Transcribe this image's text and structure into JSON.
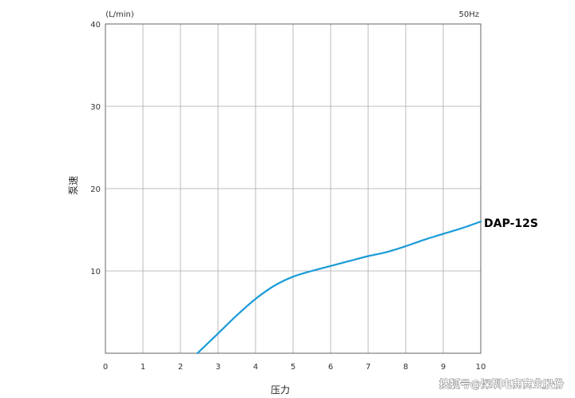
{
  "chart_data": {
    "type": "line",
    "y_unit": "(L/min)",
    "frequency": "50Hz",
    "xlabel": "压力",
    "ylabel": "泵速",
    "xlim": [
      0,
      10
    ],
    "ylim": [
      0,
      40
    ],
    "x_ticks": [
      "0",
      "1",
      "2",
      "3",
      "4",
      "5",
      "6",
      "7",
      "8",
      "9",
      "10"
    ],
    "y_ticks": [
      "10",
      "20",
      "30",
      "40"
    ],
    "grid": true,
    "line_color": "#1a9bd7",
    "series": [
      {
        "name": "DAP-12S",
        "x": [
          2.45,
          3.0,
          3.5,
          4.0,
          4.5,
          5.0,
          5.5,
          6.0,
          6.5,
          7.0,
          7.5,
          8.0,
          8.5,
          9.0,
          9.5,
          10.0
        ],
        "y": [
          0.0,
          2.4,
          4.6,
          6.6,
          8.2,
          9.3,
          10.0,
          10.6,
          11.2,
          11.8,
          12.3,
          13.0,
          13.8,
          14.5,
          15.2,
          16.0
        ]
      }
    ]
  },
  "watermark": "搜狐号@深圳电商商业股份"
}
